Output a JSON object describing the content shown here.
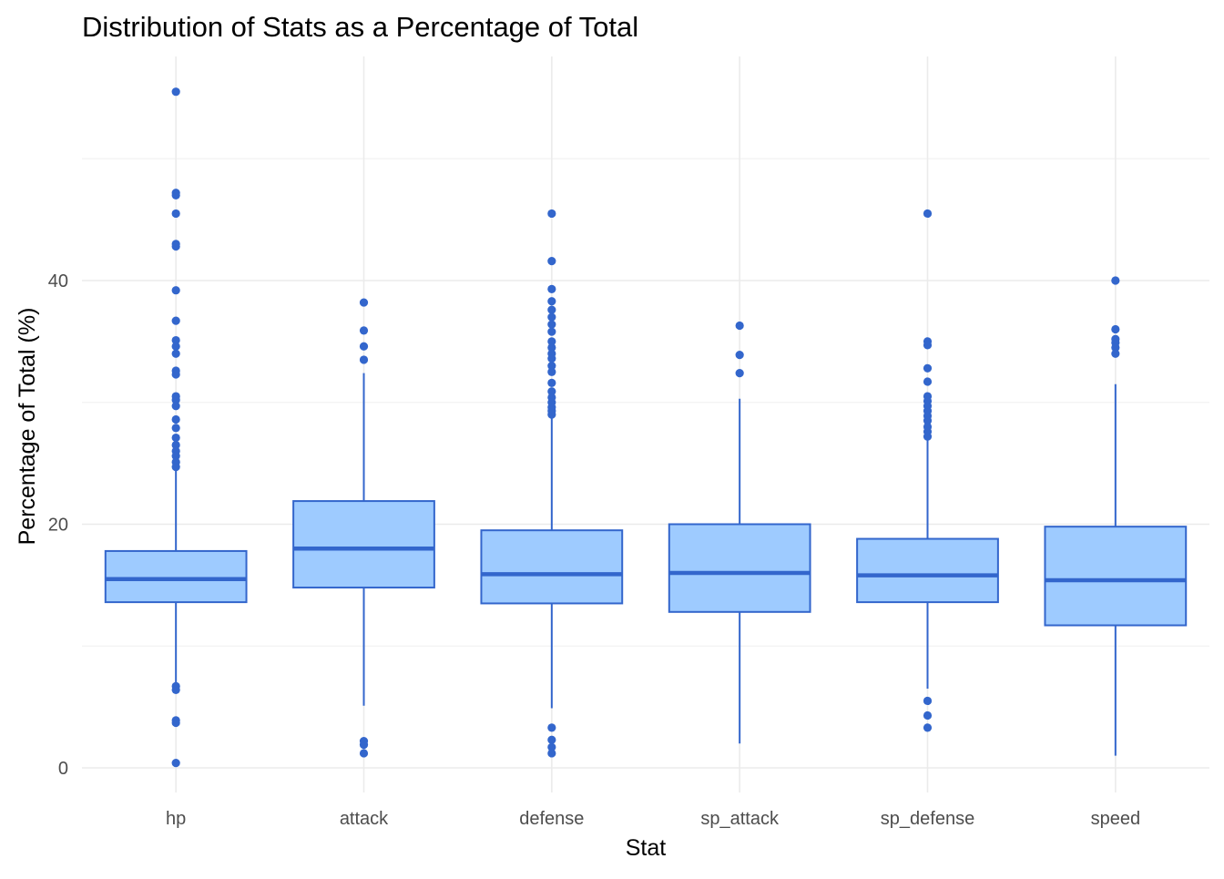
{
  "chart_data": {
    "type": "boxplot",
    "title": "Distribution of Stats as a Percentage of Total",
    "xlabel": "Stat",
    "ylabel": "Percentage of Total (%)",
    "categories": [
      "hp",
      "attack",
      "defense",
      "sp_attack",
      "sp_defense",
      "speed"
    ],
    "ylim": [
      -2,
      58
    ],
    "yticks": [
      0,
      20,
      40
    ],
    "grid": true,
    "box_fill": "#9ecbff",
    "box_stroke": "#3366cc",
    "boxes": [
      {
        "name": "hp",
        "q1": 13.6,
        "median": 15.5,
        "q3": 17.8,
        "whisker_low": 7.0,
        "whisker_high": 24.5,
        "outliers": [
          55.5,
          47.2,
          47.0,
          45.5,
          43.0,
          42.8,
          39.2,
          36.7,
          35.1,
          34.6,
          34.0,
          32.6,
          32.3,
          30.5,
          30.2,
          29.7,
          28.6,
          27.9,
          27.1,
          26.5,
          26.0,
          25.6,
          25.1,
          24.7,
          6.7,
          6.4,
          3.9,
          3.7,
          0.4
        ]
      },
      {
        "name": "attack",
        "q1": 14.8,
        "median": 18.0,
        "q3": 21.9,
        "whisker_low": 5.1,
        "whisker_high": 32.4,
        "outliers": [
          38.2,
          35.9,
          34.6,
          33.5,
          2.2,
          1.9,
          1.2
        ]
      },
      {
        "name": "defense",
        "q1": 13.5,
        "median": 15.9,
        "q3": 19.5,
        "whisker_low": 4.9,
        "whisker_high": 28.8,
        "outliers": [
          45.5,
          41.6,
          39.3,
          38.3,
          37.6,
          37.0,
          36.4,
          35.8,
          35.0,
          34.5,
          34.0,
          33.6,
          33.0,
          32.5,
          31.6,
          30.9,
          30.4,
          30.0,
          29.6,
          29.3,
          29.0,
          3.3,
          2.3,
          1.7,
          1.2
        ]
      },
      {
        "name": "sp_attack",
        "q1": 12.8,
        "median": 16.0,
        "q3": 20.0,
        "whisker_low": 2.0,
        "whisker_high": 30.3,
        "outliers": [
          36.3,
          33.9,
          32.4
        ]
      },
      {
        "name": "sp_defense",
        "q1": 13.6,
        "median": 15.8,
        "q3": 18.8,
        "whisker_low": 6.5,
        "whisker_high": 26.9,
        "outliers": [
          45.5,
          35.0,
          34.7,
          32.8,
          31.7,
          30.5,
          30.1,
          29.7,
          29.3,
          28.9,
          28.5,
          28.0,
          27.6,
          27.2,
          5.5,
          4.3,
          3.3
        ]
      },
      {
        "name": "speed",
        "q1": 11.7,
        "median": 15.4,
        "q3": 19.8,
        "whisker_low": 1.0,
        "whisker_high": 31.5,
        "outliers": [
          40.0,
          36.0,
          35.2,
          34.9,
          34.5,
          34.0
        ]
      }
    ]
  }
}
